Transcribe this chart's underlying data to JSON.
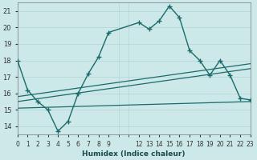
{
  "xlabel": "Humidex (Indice chaleur)",
  "bg_color": "#cce8e8",
  "grid_color": "#b8d8d8",
  "line_color": "#1a6b6b",
  "xlim": [
    0,
    23
  ],
  "ylim": [
    13.5,
    21.5
  ],
  "yticks": [
    14,
    15,
    16,
    17,
    18,
    19,
    20,
    21
  ],
  "xtick_positions": [
    0,
    1,
    2,
    3,
    4,
    5,
    6,
    7,
    8,
    9,
    12,
    13,
    14,
    15,
    16,
    17,
    18,
    19,
    20,
    21,
    22,
    23
  ],
  "xtick_labels": [
    "0",
    "1",
    "2",
    "3",
    "4",
    "5",
    "6",
    "7",
    "8",
    "9",
    "12",
    "13",
    "14",
    "15",
    "16",
    "17",
    "18",
    "19",
    "20",
    "21",
    "22",
    "23"
  ],
  "curve1_x": [
    0,
    1,
    2,
    3,
    4,
    5,
    6,
    7,
    8,
    9,
    12,
    13,
    14,
    15,
    16,
    17,
    18,
    19,
    20,
    21,
    22,
    23
  ],
  "curve1_y": [
    18.0,
    16.2,
    15.5,
    15.0,
    13.7,
    14.3,
    16.0,
    17.2,
    18.2,
    19.7,
    20.3,
    19.9,
    20.4,
    21.3,
    20.6,
    18.6,
    18.0,
    17.1,
    18.0,
    17.1,
    15.7,
    15.6
  ],
  "curve2_x": [
    0,
    23
  ],
  "curve2_y": [
    15.8,
    17.8
  ],
  "curve3_x": [
    0,
    23
  ],
  "curve3_y": [
    15.5,
    17.5
  ],
  "curve4_x": [
    0,
    23
  ],
  "curve4_y": [
    15.1,
    15.5
  ]
}
